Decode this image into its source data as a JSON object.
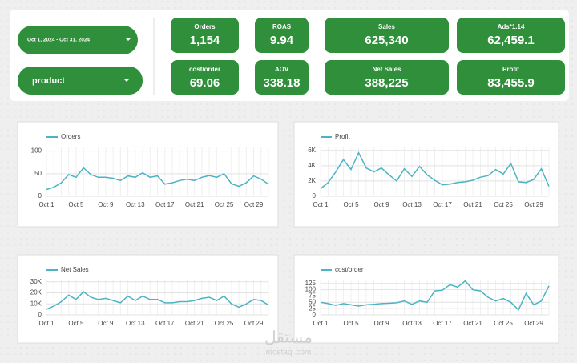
{
  "filters": {
    "date_range": "Oct 1, 2024 - Oct 31, 2024",
    "dimension": "product"
  },
  "kpis": [
    {
      "label": "Orders",
      "value": "1,154"
    },
    {
      "label": "cost/order",
      "value": "69.06"
    },
    {
      "label": "ROAS",
      "value": "9.94"
    },
    {
      "label": "AOV",
      "value": "338.18"
    },
    {
      "label": "Sales",
      "value": "625,340"
    },
    {
      "label": "Net Sales",
      "value": "388,225"
    },
    {
      "label": "Ads*1.14",
      "value": "62,459.1"
    },
    {
      "label": "Profit",
      "value": "83,455.9"
    }
  ],
  "watermark": [
    "مستقل",
    "mostaql.com"
  ],
  "chart_data": [
    {
      "type": "line",
      "categories": [
        "Oct 1",
        null,
        null,
        null,
        "Oct 5",
        null,
        null,
        null,
        "Oct 9",
        null,
        null,
        null,
        "Oct 13",
        null,
        null,
        null,
        "Oct 17",
        null,
        null,
        null,
        "Oct 21",
        null,
        null,
        null,
        "Oct 25",
        null,
        null,
        null,
        "Oct 29",
        null,
        null
      ],
      "series": [
        {
          "name": "Orders",
          "color": "#4bb3c4",
          "values": [
            15,
            20,
            30,
            48,
            42,
            63,
            48,
            42,
            42,
            40,
            35,
            45,
            42,
            52,
            42,
            45,
            27,
            30,
            35,
            38,
            35,
            42,
            46,
            42,
            50,
            28,
            22,
            30,
            45,
            38,
            27
          ]
        }
      ],
      "ylim": [
        0,
        110
      ],
      "yticks": [
        0,
        50,
        100
      ],
      "grid": true
    },
    {
      "type": "line",
      "categories": [
        "Oct 1",
        null,
        null,
        null,
        "Oct 5",
        null,
        null,
        null,
        "Oct 9",
        null,
        null,
        null,
        "Oct 13",
        null,
        null,
        null,
        "Oct 17",
        null,
        null,
        null,
        "Oct 21",
        null,
        null,
        null,
        "Oct 25",
        null,
        null,
        null,
        "Oct 29",
        null,
        null
      ],
      "series": [
        {
          "name": "Profit",
          "color": "#4bb3c4",
          "values": [
            1000,
            1800,
            3200,
            4800,
            3500,
            5700,
            3700,
            3200,
            3700,
            2800,
            2000,
            3600,
            2600,
            3900,
            2800,
            2100,
            1500,
            1600,
            1800,
            1900,
            2100,
            2500,
            2700,
            3500,
            2900,
            4300,
            1900,
            1800,
            2200,
            3600,
            1300
          ]
        }
      ],
      "ylim": [
        0,
        6500
      ],
      "yticks": [
        0,
        {
          "value": 2000,
          "label": "2K"
        },
        {
          "value": 4000,
          "label": "4K"
        },
        {
          "value": 6000,
          "label": "6K"
        }
      ],
      "grid": true
    },
    {
      "type": "line",
      "categories": [
        "Oct 1",
        null,
        null,
        null,
        "Oct 5",
        null,
        null,
        null,
        "Oct 9",
        null,
        null,
        null,
        "Oct 13",
        null,
        null,
        null,
        "Oct 17",
        null,
        null,
        null,
        "Oct 21",
        null,
        null,
        null,
        "Oct 25",
        null,
        null,
        null,
        "Oct 29",
        null,
        null
      ],
      "series": [
        {
          "name": "Net Sales",
          "color": "#4bb3c4",
          "values": [
            5000,
            8000,
            12000,
            18000,
            14000,
            21000,
            16000,
            14000,
            15000,
            13000,
            11000,
            17000,
            13000,
            17000,
            14000,
            14000,
            11000,
            11000,
            12000,
            12000,
            13000,
            15000,
            16000,
            13000,
            17000,
            10000,
            7000,
            10000,
            14000,
            13000,
            9000
          ]
        }
      ],
      "ylim": [
        0,
        32000
      ],
      "yticks": [
        0,
        {
          "value": 10000,
          "label": "10K"
        },
        {
          "value": 20000,
          "label": "20K"
        },
        {
          "value": 30000,
          "label": "30K"
        }
      ],
      "grid": true
    },
    {
      "type": "line",
      "categories": [
        "Oct 1",
        null,
        null,
        null,
        "Oct 5",
        null,
        null,
        null,
        "Oct 9",
        null,
        null,
        null,
        "Oct 13",
        null,
        null,
        null,
        "Oct 17",
        null,
        null,
        null,
        "Oct 21",
        null,
        null,
        null,
        "Oct 25",
        null,
        null,
        null,
        "Oct 29",
        null,
        null
      ],
      "series": [
        {
          "name": "cost/order",
          "color": "#4bb3c4",
          "values": [
            50,
            45,
            38,
            45,
            40,
            35,
            40,
            42,
            45,
            46,
            48,
            55,
            42,
            55,
            50,
            95,
            98,
            120,
            110,
            135,
            100,
            95,
            70,
            55,
            65,
            50,
            20,
            85,
            40,
            55,
            115
          ]
        }
      ],
      "ylim": [
        0,
        140
      ],
      "yticks": [
        0,
        25,
        50,
        75,
        100,
        125
      ],
      "grid": true
    }
  ]
}
